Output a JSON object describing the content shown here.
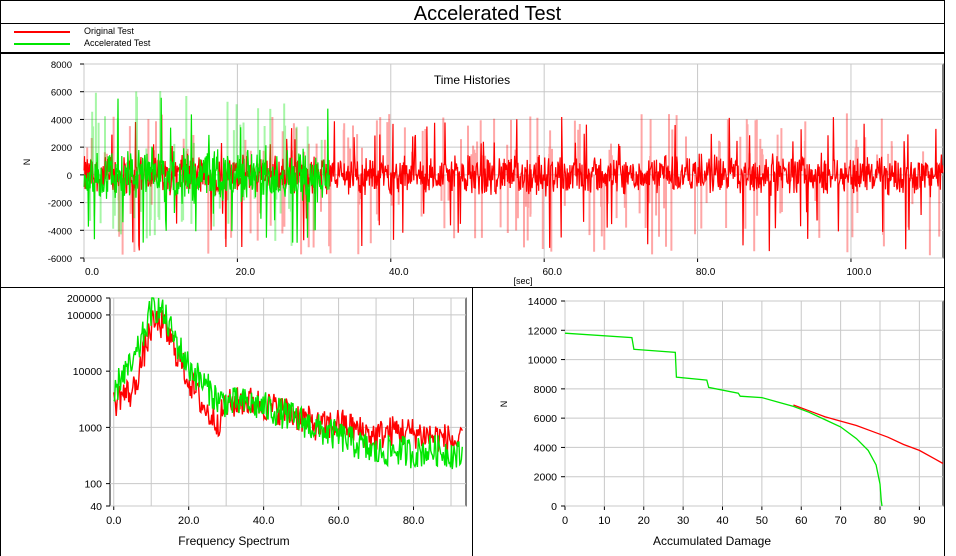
{
  "page": {
    "title": "Accelerated Test"
  },
  "colors": {
    "original": "#ff0000",
    "accelerated": "#00e600",
    "grid": "#c8c8c8",
    "frame": "#000000"
  },
  "chart_data": [
    {
      "name": "time-histories",
      "type": "line",
      "title": "Time Histories",
      "xlabel": "[sec]",
      "ylabel": "N",
      "xlim": [
        0,
        112
      ],
      "ylim": [
        -6000,
        8000
      ],
      "xticks": [
        0,
        20,
        40,
        60,
        80,
        100
      ],
      "xtick_labels": [
        "0.0",
        "20.0",
        "40.0",
        "60.0",
        "80.0",
        "100.0"
      ],
      "yticks": [
        -6000,
        -4000,
        -2000,
        0,
        2000,
        4000,
        6000,
        8000
      ],
      "ytick_labels": [
        "-6000",
        "-4000",
        "-2000",
        "0",
        "2000",
        "4000",
        "6000",
        "8000"
      ],
      "series": [
        {
          "name": "Original Test",
          "color": "#ff0000",
          "x_range": [
            0,
            112
          ],
          "typical_amplitude": 1500,
          "peak_range": [
            -5800,
            4500
          ]
        },
        {
          "name": "Accelerated Test",
          "color": "#00e600",
          "x_range": [
            0,
            32
          ],
          "typical_amplitude": 2000,
          "peak_range": [
            -5500,
            6200
          ]
        }
      ],
      "grid": true
    },
    {
      "name": "frequency-spectrum",
      "type": "line",
      "title": "Frequency Spectrum",
      "xlabel": "",
      "ylabel": "",
      "log_y": true,
      "xlim": [
        -1,
        94
      ],
      "ylim": [
        40,
        200000
      ],
      "xticks": [
        0,
        20,
        40,
        60,
        80
      ],
      "xtick_labels": [
        "0.0",
        "20.0",
        "40.0",
        "60.0",
        "80.0"
      ],
      "yticks": [
        40,
        100,
        1000,
        10000,
        100000,
        200000
      ],
      "ytick_labels": [
        "40",
        "100",
        "1000",
        "10000",
        "100000",
        "200000"
      ],
      "series": [
        {
          "name": "Original Test",
          "color": "#ff0000",
          "x": [
            0,
            2,
            5,
            8,
            10,
            12,
            14,
            17,
            20,
            25,
            28,
            30,
            35,
            40,
            45,
            50,
            55,
            60,
            65,
            70,
            75,
            80,
            85,
            90,
            93
          ],
          "y": [
            2500,
            4000,
            4000,
            20000,
            60000,
            80000,
            50000,
            20000,
            7000,
            1800,
            1300,
            2500,
            3000,
            2500,
            2000,
            1500,
            1000,
            1200,
            900,
            700,
            900,
            800,
            700,
            600,
            500
          ]
        },
        {
          "name": "Accelerated Test",
          "color": "#00e600",
          "x": [
            0,
            2,
            5,
            8,
            10,
            12,
            14,
            17,
            20,
            25,
            28,
            30,
            35,
            40,
            45,
            50,
            55,
            60,
            65,
            70,
            75,
            80,
            85,
            90,
            93
          ],
          "y": [
            3000,
            9000,
            12000,
            45000,
            120000,
            140000,
            80000,
            30000,
            12000,
            5000,
            3000,
            2800,
            2700,
            2300,
            1800,
            1300,
            900,
            700,
            500,
            350,
            400,
            350,
            400,
            350,
            300
          ]
        }
      ],
      "grid": true
    },
    {
      "name": "accumulated-damage",
      "type": "line",
      "title": "Accumulated Damage",
      "xlabel": "",
      "ylabel": "N",
      "xlim": [
        0,
        96
      ],
      "ylim": [
        0,
        14000
      ],
      "xticks": [
        0,
        10,
        20,
        30,
        40,
        50,
        60,
        70,
        80,
        90
      ],
      "xtick_labels": [
        "0",
        "10",
        "20",
        "30",
        "40",
        "50",
        "60",
        "70",
        "80",
        "90"
      ],
      "yticks": [
        0,
        2000,
        4000,
        6000,
        8000,
        10000,
        12000,
        14000
      ],
      "ytick_labels": [
        "0",
        "2000",
        "4000",
        "6000",
        "8000",
        "10000",
        "12000",
        "14000"
      ],
      "series": [
        {
          "name": "Original Test",
          "color": "#ff0000",
          "x": [
            58,
            62,
            66,
            70,
            74,
            78,
            82,
            86,
            90,
            94,
            96
          ],
          "y": [
            6900,
            6500,
            6100,
            5800,
            5500,
            5100,
            4700,
            4200,
            3800,
            3200,
            2900
          ]
        },
        {
          "name": "Accelerated Test",
          "color": "#00e600",
          "x": [
            0,
            17,
            17.5,
            28,
            28.3,
            36,
            36.5,
            44,
            44.5,
            50,
            54,
            58,
            62,
            66,
            70,
            74,
            77,
            79,
            80,
            80.3,
            80.5
          ],
          "y": [
            11800,
            11500,
            10700,
            10500,
            8800,
            8600,
            8100,
            7700,
            7500,
            7400,
            7100,
            6800,
            6400,
            5900,
            5400,
            4600,
            3800,
            2800,
            1500,
            400,
            0
          ]
        }
      ],
      "grid": true
    }
  ]
}
